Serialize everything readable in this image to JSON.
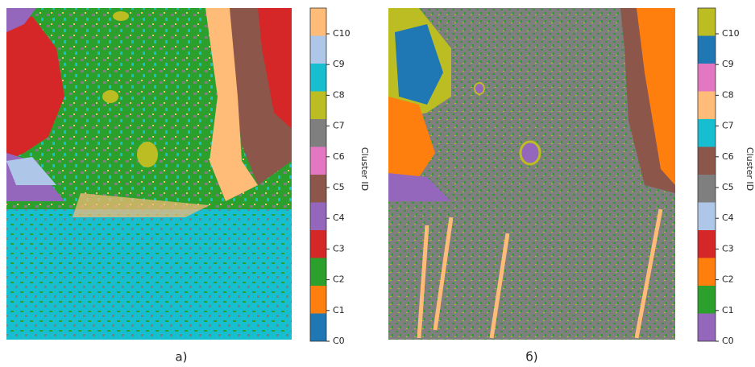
{
  "panels": [
    {
      "caption": "а)",
      "colorbar": {
        "label": "Cluster ID",
        "clusters": [
          {
            "label": "C0",
            "color": "#1f77b4"
          },
          {
            "label": "C1",
            "color": "#ff7f0e"
          },
          {
            "label": "C2",
            "color": "#2ca02c"
          },
          {
            "label": "C3",
            "color": "#d62728"
          },
          {
            "label": "C4",
            "color": "#9467bd"
          },
          {
            "label": "C5",
            "color": "#8c564b"
          },
          {
            "label": "C6",
            "color": "#e377c2"
          },
          {
            "label": "C7",
            "color": "#7f7f7f"
          },
          {
            "label": "C8",
            "color": "#bcbd22"
          },
          {
            "label": "C9",
            "color": "#17becf"
          },
          {
            "label": "C10",
            "color": "#aec7e8"
          },
          {
            "label": null,
            "color": "#ffbb78"
          }
        ]
      }
    },
    {
      "caption": "б)",
      "colorbar": {
        "label": "Cluster ID",
        "clusters": [
          {
            "label": "C0",
            "color": "#9467bd"
          },
          {
            "label": "C1",
            "color": "#2ca02c"
          },
          {
            "label": "C2",
            "color": "#ff7f0e"
          },
          {
            "label": "C3",
            "color": "#d62728"
          },
          {
            "label": "C4",
            "color": "#aec7e8"
          },
          {
            "label": "C5",
            "color": "#7f7f7f"
          },
          {
            "label": "C6",
            "color": "#8c564b"
          },
          {
            "label": "C7",
            "color": "#17becf"
          },
          {
            "label": "C8",
            "color": "#ffbb78"
          },
          {
            "label": "C9",
            "color": "#e377c2"
          },
          {
            "label": "C10",
            "color": "#1f77b4"
          },
          {
            "label": null,
            "color": "#bcbd22"
          }
        ]
      }
    }
  ]
}
